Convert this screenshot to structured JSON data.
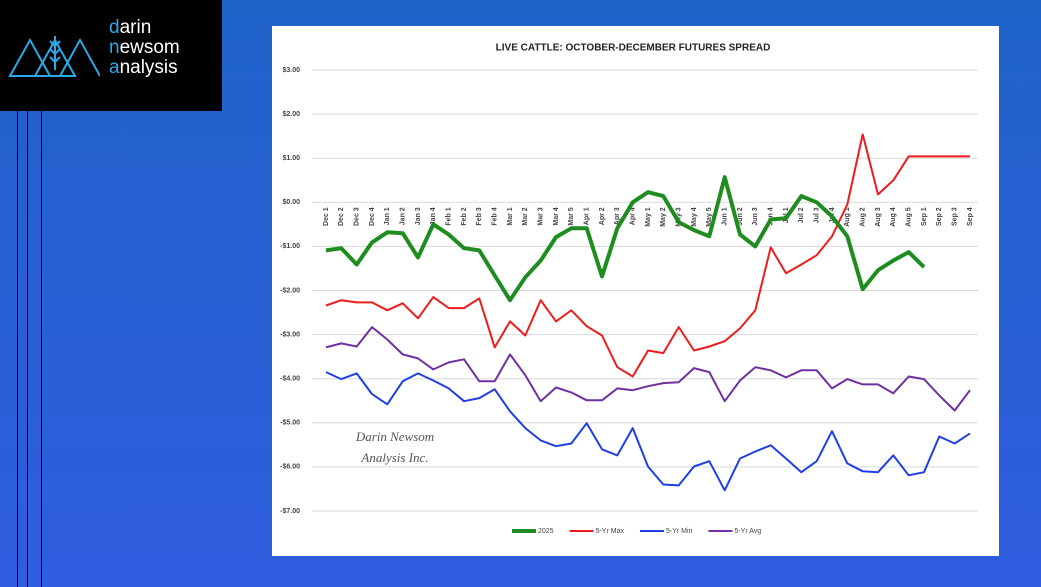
{
  "logo": {
    "lines": [
      "darin",
      "newsom",
      "analysis"
    ]
  },
  "chart_data": {
    "type": "line",
    "title": "LIVE CATTLE: OCTOBER-DECEMBER FUTURES SPREAD",
    "watermark": [
      "Darin Newsom",
      "Analysis Inc."
    ],
    "categories": [
      "Dec 1",
      "Dec 2",
      "Dec 3",
      "Dec 4",
      "Jan 1",
      "Jan 2",
      "Jan 3",
      "Jan 4",
      "Feb 1",
      "Feb 2",
      "Feb 3",
      "Feb 4",
      "Mar 1",
      "Mar 2",
      "Mar 3",
      "Mar 4",
      "Mar 5",
      "Apr 1",
      "Apr 2",
      "Apr 3",
      "Apr 4",
      "May 1",
      "May 2",
      "May 3",
      "May 4",
      "May 5",
      "Jun 1",
      "Jun 2",
      "Jun 3",
      "Jun 4",
      "Jul 1",
      "Jul 2",
      "Jul 3",
      "Jul 4",
      "Aug 1",
      "Aug 2",
      "Aug 3",
      "Aug 4",
      "Aug 5",
      "Sep 1",
      "Sep 2",
      "Sep 3",
      "Sep 4"
    ],
    "series": [
      {
        "name": "2025",
        "color": "#1e8c1e",
        "width": 4,
        "values": [
          -1.09,
          -1.04,
          -1.41,
          -0.91,
          -0.68,
          -0.7,
          -1.25,
          -0.5,
          -0.73,
          -1.04,
          -1.09,
          -1.66,
          -2.22,
          -1.7,
          -1.32,
          -0.79,
          -0.59,
          -0.59,
          -1.68,
          -0.59,
          0.0,
          0.23,
          0.14,
          -0.45,
          -0.63,
          -0.77,
          0.57,
          -0.73,
          -1.0,
          -0.39,
          -0.36,
          0.14,
          0.0,
          -0.32,
          -0.77,
          -1.97,
          -1.54,
          -1.32,
          -1.13,
          -1.47,
          null,
          null,
          null
        ]
      },
      {
        "name": "5-Yr Max",
        "color": "#ee1c1c",
        "width": 2,
        "values": [
          -2.34,
          -2.22,
          -2.27,
          -2.27,
          -2.45,
          -2.29,
          -2.63,
          -2.15,
          -2.4,
          -2.4,
          -2.18,
          -3.29,
          -2.7,
          -3.02,
          -2.22,
          -2.7,
          -2.45,
          -2.81,
          -3.02,
          -3.74,
          -3.95,
          -3.36,
          -3.42,
          -2.83,
          -3.36,
          -3.27,
          -3.15,
          -2.86,
          -2.45,
          -1.02,
          -1.61,
          -1.41,
          -1.2,
          -0.77,
          -0.05,
          1.54,
          0.18,
          0.5,
          1.04,
          1.04,
          1.04,
          1.04,
          1.04
        ]
      },
      {
        "name": "5-Yr Min",
        "color": "#1f3fe6",
        "width": 2,
        "values": [
          -3.85,
          -4.01,
          -3.88,
          -4.35,
          -4.58,
          -4.06,
          -3.88,
          -4.04,
          -4.22,
          -4.51,
          -4.44,
          -4.24,
          -4.74,
          -5.12,
          -5.4,
          -5.53,
          -5.47,
          -5.01,
          -5.6,
          -5.74,
          -5.12,
          -5.99,
          -6.4,
          -6.42,
          -5.99,
          -5.87,
          -6.53,
          -5.81,
          -5.65,
          -5.51,
          -5.81,
          -6.12,
          -5.87,
          -5.19,
          -5.92,
          -6.1,
          -6.12,
          -5.74,
          -6.19,
          -6.12,
          -5.31,
          -5.47,
          -5.24
        ]
      },
      {
        "name": "5-Yr Avg",
        "color": "#7030a0",
        "width": 2,
        "values": [
          -3.29,
          -3.2,
          -3.27,
          -2.83,
          -3.11,
          -3.45,
          -3.54,
          -3.79,
          -3.63,
          -3.56,
          -4.06,
          -4.06,
          -3.45,
          -3.92,
          -4.51,
          -4.2,
          -4.31,
          -4.49,
          -4.49,
          -4.22,
          -4.26,
          -4.17,
          -4.1,
          -4.08,
          -3.76,
          -3.85,
          -4.51,
          -4.04,
          -3.74,
          -3.81,
          -3.97,
          -3.81,
          -3.81,
          -4.22,
          -4.01,
          -4.13,
          -4.13,
          -4.33,
          -3.95,
          -4.01,
          -4.38,
          -4.72,
          -4.26
        ]
      }
    ],
    "ylim": [
      -7,
      3
    ],
    "yticks": [
      {
        "value": 3,
        "label": "$3.00"
      },
      {
        "value": 2,
        "label": "$2.00"
      },
      {
        "value": 1,
        "label": "$1.00"
      },
      {
        "value": 0,
        "label": "$0.00"
      },
      {
        "value": -1,
        "label": "-$1.00"
      },
      {
        "value": -2,
        "label": "-$2.00"
      },
      {
        "value": -3,
        "label": "-$3.00"
      },
      {
        "value": -4,
        "label": "-$4.00"
      },
      {
        "value": -5,
        "label": "-$5.00"
      },
      {
        "value": -6,
        "label": "-$6.00"
      },
      {
        "value": -7,
        "label": "-$7.00"
      }
    ],
    "grid": true,
    "legend": "bottom"
  }
}
